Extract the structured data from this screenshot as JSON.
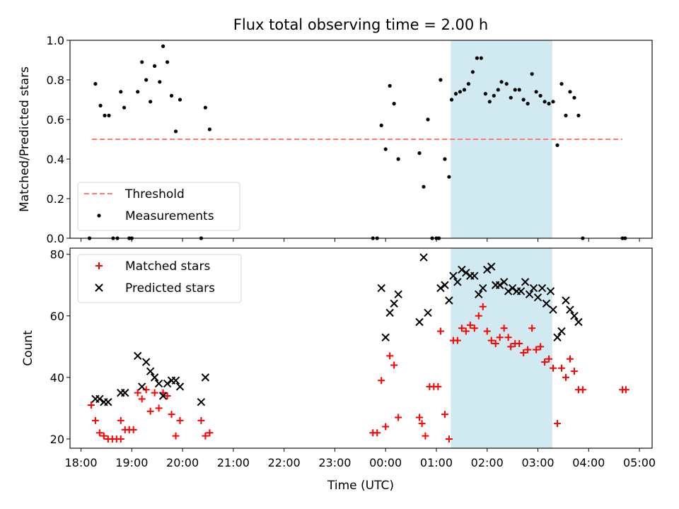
{
  "figure": {
    "title": "Flux total observing time = 2.00 h",
    "xlabel": "Time (UTC)"
  },
  "chart_data": [
    {
      "type": "scatter",
      "ylabel": "Matched/Predicted stars",
      "ylim": [
        0,
        1.0
      ],
      "yticks": [
        "0.0",
        "0.2",
        "0.4",
        "0.6",
        "0.8",
        "1.0"
      ],
      "xlim": [
        "17:47",
        "05:15"
      ],
      "xticks": [
        "18:00",
        "19:00",
        "20:00",
        "21:00",
        "22:00",
        "23:00",
        "00:00",
        "01:00",
        "02:00",
        "03:00",
        "04:00",
        "05:00"
      ],
      "legend_position": "lower-left",
      "highlight_span": {
        "from": "01:17",
        "to": "03:17",
        "color": "#d1e9f0"
      },
      "threshold": {
        "name": "Threshold",
        "value": 0.5,
        "from": "18:13",
        "to": "04:40",
        "color": "#ff7a72",
        "style": "dashed"
      },
      "series": [
        {
          "name": "Measurements",
          "color": "#000000",
          "marker": "dot",
          "points": [
            {
              "x": "18:10",
              "y": 0.0
            },
            {
              "x": "18:17",
              "y": 0.78
            },
            {
              "x": "18:23",
              "y": 0.67
            },
            {
              "x": "18:28",
              "y": 0.62
            },
            {
              "x": "18:33",
              "y": 0.62
            },
            {
              "x": "18:38",
              "y": 0.0
            },
            {
              "x": "18:43",
              "y": 0.0
            },
            {
              "x": "18:47",
              "y": 0.74
            },
            {
              "x": "18:51",
              "y": 0.66
            },
            {
              "x": "18:57",
              "y": 0.0
            },
            {
              "x": "19:00",
              "y": 0.0
            },
            {
              "x": "19:07",
              "y": 0.74
            },
            {
              "x": "19:12",
              "y": 0.89
            },
            {
              "x": "19:17",
              "y": 0.8
            },
            {
              "x": "19:22",
              "y": 0.69
            },
            {
              "x": "19:27",
              "y": 0.87
            },
            {
              "x": "19:33",
              "y": 0.79
            },
            {
              "x": "19:37",
              "y": 0.97
            },
            {
              "x": "19:42",
              "y": 0.89
            },
            {
              "x": "19:47",
              "y": 0.72
            },
            {
              "x": "19:52",
              "y": 0.54
            },
            {
              "x": "19:57",
              "y": 0.7
            },
            {
              "x": "20:22",
              "y": 0.0
            },
            {
              "x": "20:27",
              "y": 0.66
            },
            {
              "x": "20:32",
              "y": 0.55
            },
            {
              "x": "23:45",
              "y": 0.0
            },
            {
              "x": "23:50",
              "y": 0.0
            },
            {
              "x": "23:55",
              "y": 0.57
            },
            {
              "x": "00:00",
              "y": 0.45
            },
            {
              "x": "00:05",
              "y": 0.77
            },
            {
              "x": "00:10",
              "y": 0.68
            },
            {
              "x": "00:15",
              "y": 0.4
            },
            {
              "x": "00:40",
              "y": 0.43
            },
            {
              "x": "00:45",
              "y": 0.26
            },
            {
              "x": "00:50",
              "y": 0.6
            },
            {
              "x": "00:55",
              "y": 0.0
            },
            {
              "x": "01:00",
              "y": 0.0
            },
            {
              "x": "01:03",
              "y": 0.0
            },
            {
              "x": "01:05",
              "y": 0.8
            },
            {
              "x": "01:10",
              "y": 0.4
            },
            {
              "x": "01:15",
              "y": 0.31
            },
            {
              "x": "01:18",
              "y": 0.7
            },
            {
              "x": "01:23",
              "y": 0.73
            },
            {
              "x": "01:28",
              "y": 0.74
            },
            {
              "x": "01:33",
              "y": 0.75
            },
            {
              "x": "01:38",
              "y": 0.78
            },
            {
              "x": "01:43",
              "y": 0.84
            },
            {
              "x": "01:48",
              "y": 0.91
            },
            {
              "x": "01:53",
              "y": 0.91
            },
            {
              "x": "01:58",
              "y": 0.73
            },
            {
              "x": "02:03",
              "y": 0.69
            },
            {
              "x": "02:08",
              "y": 0.72
            },
            {
              "x": "02:13",
              "y": 0.75
            },
            {
              "x": "02:17",
              "y": 0.79
            },
            {
              "x": "02:23",
              "y": 0.78
            },
            {
              "x": "02:28",
              "y": 0.71
            },
            {
              "x": "02:33",
              "y": 0.75
            },
            {
              "x": "02:38",
              "y": 0.75
            },
            {
              "x": "02:43",
              "y": 0.7
            },
            {
              "x": "02:48",
              "y": 0.68
            },
            {
              "x": "02:53",
              "y": 0.83
            },
            {
              "x": "02:58",
              "y": 0.74
            },
            {
              "x": "03:03",
              "y": 0.72
            },
            {
              "x": "03:08",
              "y": 0.69
            },
            {
              "x": "03:13",
              "y": 0.68
            },
            {
              "x": "03:18",
              "y": 0.69
            },
            {
              "x": "03:23",
              "y": 0.47
            },
            {
              "x": "03:28",
              "y": 0.78
            },
            {
              "x": "03:33",
              "y": 0.62
            },
            {
              "x": "03:38",
              "y": 0.74
            },
            {
              "x": "03:43",
              "y": 0.71
            },
            {
              "x": "03:48",
              "y": 0.62
            },
            {
              "x": "03:53",
              "y": 0.0
            },
            {
              "x": "04:40",
              "y": 0.0
            },
            {
              "x": "04:43",
              "y": 0.0
            }
          ]
        }
      ]
    },
    {
      "type": "scatter",
      "ylabel": "Count",
      "ylim": [
        17,
        82
      ],
      "yticks": [
        "20",
        "40",
        "60",
        "80"
      ],
      "xlim": [
        "17:47",
        "05:15"
      ],
      "xticks": [
        "18:00",
        "19:00",
        "20:00",
        "21:00",
        "22:00",
        "23:00",
        "00:00",
        "01:00",
        "02:00",
        "03:00",
        "04:00",
        "05:00"
      ],
      "legend_position": "upper-left",
      "highlight_span": {
        "from": "01:17",
        "to": "03:17",
        "color": "#d1e9f0"
      },
      "series": [
        {
          "name": "Matched stars",
          "color": "#ff0000",
          "marker": "plus",
          "points": [
            {
              "x": "18:12",
              "y": 31
            },
            {
              "x": "18:17",
              "y": 26
            },
            {
              "x": "18:22",
              "y": 22
            },
            {
              "x": "18:27",
              "y": 21
            },
            {
              "x": "18:32",
              "y": 20
            },
            {
              "x": "18:37",
              "y": 20
            },
            {
              "x": "18:42",
              "y": 20
            },
            {
              "x": "18:47",
              "y": 20
            },
            {
              "x": "18:47",
              "y": 26
            },
            {
              "x": "18:52",
              "y": 23
            },
            {
              "x": "18:57",
              "y": 23
            },
            {
              "x": "19:02",
              "y": 23
            },
            {
              "x": "19:07",
              "y": 35
            },
            {
              "x": "19:12",
              "y": 33
            },
            {
              "x": "19:17",
              "y": 36
            },
            {
              "x": "19:22",
              "y": 29
            },
            {
              "x": "19:27",
              "y": 35
            },
            {
              "x": "19:32",
              "y": 30
            },
            {
              "x": "19:37",
              "y": 35
            },
            {
              "x": "19:42",
              "y": 34
            },
            {
              "x": "19:47",
              "y": 28
            },
            {
              "x": "19:52",
              "y": 21
            },
            {
              "x": "19:57",
              "y": 26
            },
            {
              "x": "20:22",
              "y": 26
            },
            {
              "x": "20:27",
              "y": 21
            },
            {
              "x": "20:32",
              "y": 22
            },
            {
              "x": "23:45",
              "y": 22
            },
            {
              "x": "23:50",
              "y": 22
            },
            {
              "x": "23:55",
              "y": 39
            },
            {
              "x": "00:00",
              "y": 24
            },
            {
              "x": "00:05",
              "y": 47
            },
            {
              "x": "00:10",
              "y": 44
            },
            {
              "x": "00:15",
              "y": 27
            },
            {
              "x": "00:40",
              "y": 27
            },
            {
              "x": "00:43",
              "y": 25
            },
            {
              "x": "00:47",
              "y": 21
            },
            {
              "x": "00:52",
              "y": 37
            },
            {
              "x": "00:57",
              "y": 37
            },
            {
              "x": "01:02",
              "y": 37
            },
            {
              "x": "01:05",
              "y": 55
            },
            {
              "x": "01:10",
              "y": 28
            },
            {
              "x": "01:15",
              "y": 20
            },
            {
              "x": "01:20",
              "y": 52
            },
            {
              "x": "01:25",
              "y": 52
            },
            {
              "x": "01:30",
              "y": 56
            },
            {
              "x": "01:35",
              "y": 55
            },
            {
              "x": "01:40",
              "y": 57
            },
            {
              "x": "01:45",
              "y": 56
            },
            {
              "x": "01:50",
              "y": 60
            },
            {
              "x": "01:55",
              "y": 63
            },
            {
              "x": "02:00",
              "y": 55
            },
            {
              "x": "02:05",
              "y": 52
            },
            {
              "x": "02:10",
              "y": 51
            },
            {
              "x": "02:15",
              "y": 53
            },
            {
              "x": "02:20",
              "y": 56
            },
            {
              "x": "02:25",
              "y": 53
            },
            {
              "x": "02:28",
              "y": 50
            },
            {
              "x": "02:33",
              "y": 51
            },
            {
              "x": "02:38",
              "y": 51
            },
            {
              "x": "02:43",
              "y": 48
            },
            {
              "x": "02:48",
              "y": 49
            },
            {
              "x": "02:53",
              "y": 56
            },
            {
              "x": "02:58",
              "y": 49
            },
            {
              "x": "03:03",
              "y": 50
            },
            {
              "x": "03:08",
              "y": 45
            },
            {
              "x": "03:13",
              "y": 46
            },
            {
              "x": "03:18",
              "y": 43
            },
            {
              "x": "03:23",
              "y": 25
            },
            {
              "x": "03:28",
              "y": 43
            },
            {
              "x": "03:33",
              "y": 40
            },
            {
              "x": "03:38",
              "y": 46
            },
            {
              "x": "03:43",
              "y": 42
            },
            {
              "x": "03:48",
              "y": 36
            },
            {
              "x": "03:53",
              "y": 36
            },
            {
              "x": "04:40",
              "y": 36
            },
            {
              "x": "04:44",
              "y": 36
            }
          ]
        },
        {
          "name": "Predicted stars",
          "color": "#000000",
          "marker": "x",
          "points": [
            {
              "x": "18:17",
              "y": 33
            },
            {
              "x": "18:22",
              "y": 33
            },
            {
              "x": "18:27",
              "y": 32
            },
            {
              "x": "18:32",
              "y": 32
            },
            {
              "x": "18:47",
              "y": 35
            },
            {
              "x": "18:52",
              "y": 35
            },
            {
              "x": "19:07",
              "y": 47
            },
            {
              "x": "19:12",
              "y": 37
            },
            {
              "x": "19:17",
              "y": 45
            },
            {
              "x": "19:22",
              "y": 42
            },
            {
              "x": "19:27",
              "y": 40
            },
            {
              "x": "19:32",
              "y": 38
            },
            {
              "x": "19:37",
              "y": 34
            },
            {
              "x": "19:42",
              "y": 38
            },
            {
              "x": "19:47",
              "y": 39
            },
            {
              "x": "19:52",
              "y": 39
            },
            {
              "x": "19:57",
              "y": 37
            },
            {
              "x": "20:22",
              "y": 32
            },
            {
              "x": "20:27",
              "y": 40
            },
            {
              "x": "23:55",
              "y": 69
            },
            {
              "x": "00:00",
              "y": 53
            },
            {
              "x": "00:05",
              "y": 61
            },
            {
              "x": "00:10",
              "y": 64
            },
            {
              "x": "00:15",
              "y": 67
            },
            {
              "x": "00:40",
              "y": 58
            },
            {
              "x": "00:45",
              "y": 79
            },
            {
              "x": "00:50",
              "y": 61
            },
            {
              "x": "01:05",
              "y": 69
            },
            {
              "x": "01:10",
              "y": 70
            },
            {
              "x": "01:15",
              "y": 65
            },
            {
              "x": "01:20",
              "y": 73
            },
            {
              "x": "01:25",
              "y": 71
            },
            {
              "x": "01:30",
              "y": 75
            },
            {
              "x": "01:35",
              "y": 74
            },
            {
              "x": "01:40",
              "y": 73
            },
            {
              "x": "01:45",
              "y": 73
            },
            {
              "x": "01:50",
              "y": 67
            },
            {
              "x": "01:55",
              "y": 69
            },
            {
              "x": "02:00",
              "y": 75
            },
            {
              "x": "02:05",
              "y": 76
            },
            {
              "x": "02:10",
              "y": 70
            },
            {
              "x": "02:15",
              "y": 70
            },
            {
              "x": "02:20",
              "y": 71
            },
            {
              "x": "02:25",
              "y": 68
            },
            {
              "x": "02:30",
              "y": 69
            },
            {
              "x": "02:35",
              "y": 68
            },
            {
              "x": "02:40",
              "y": 68
            },
            {
              "x": "02:45",
              "y": 71
            },
            {
              "x": "02:50",
              "y": 67
            },
            {
              "x": "02:55",
              "y": 69
            },
            {
              "x": "03:00",
              "y": 66
            },
            {
              "x": "03:05",
              "y": 69
            },
            {
              "x": "03:10",
              "y": 64
            },
            {
              "x": "03:15",
              "y": 68
            },
            {
              "x": "03:18",
              "y": 62
            },
            {
              "x": "03:23",
              "y": 53
            },
            {
              "x": "03:28",
              "y": 55
            },
            {
              "x": "03:33",
              "y": 65
            },
            {
              "x": "03:38",
              "y": 62
            },
            {
              "x": "03:43",
              "y": 60
            },
            {
              "x": "03:48",
              "y": 58
            }
          ]
        }
      ]
    }
  ]
}
